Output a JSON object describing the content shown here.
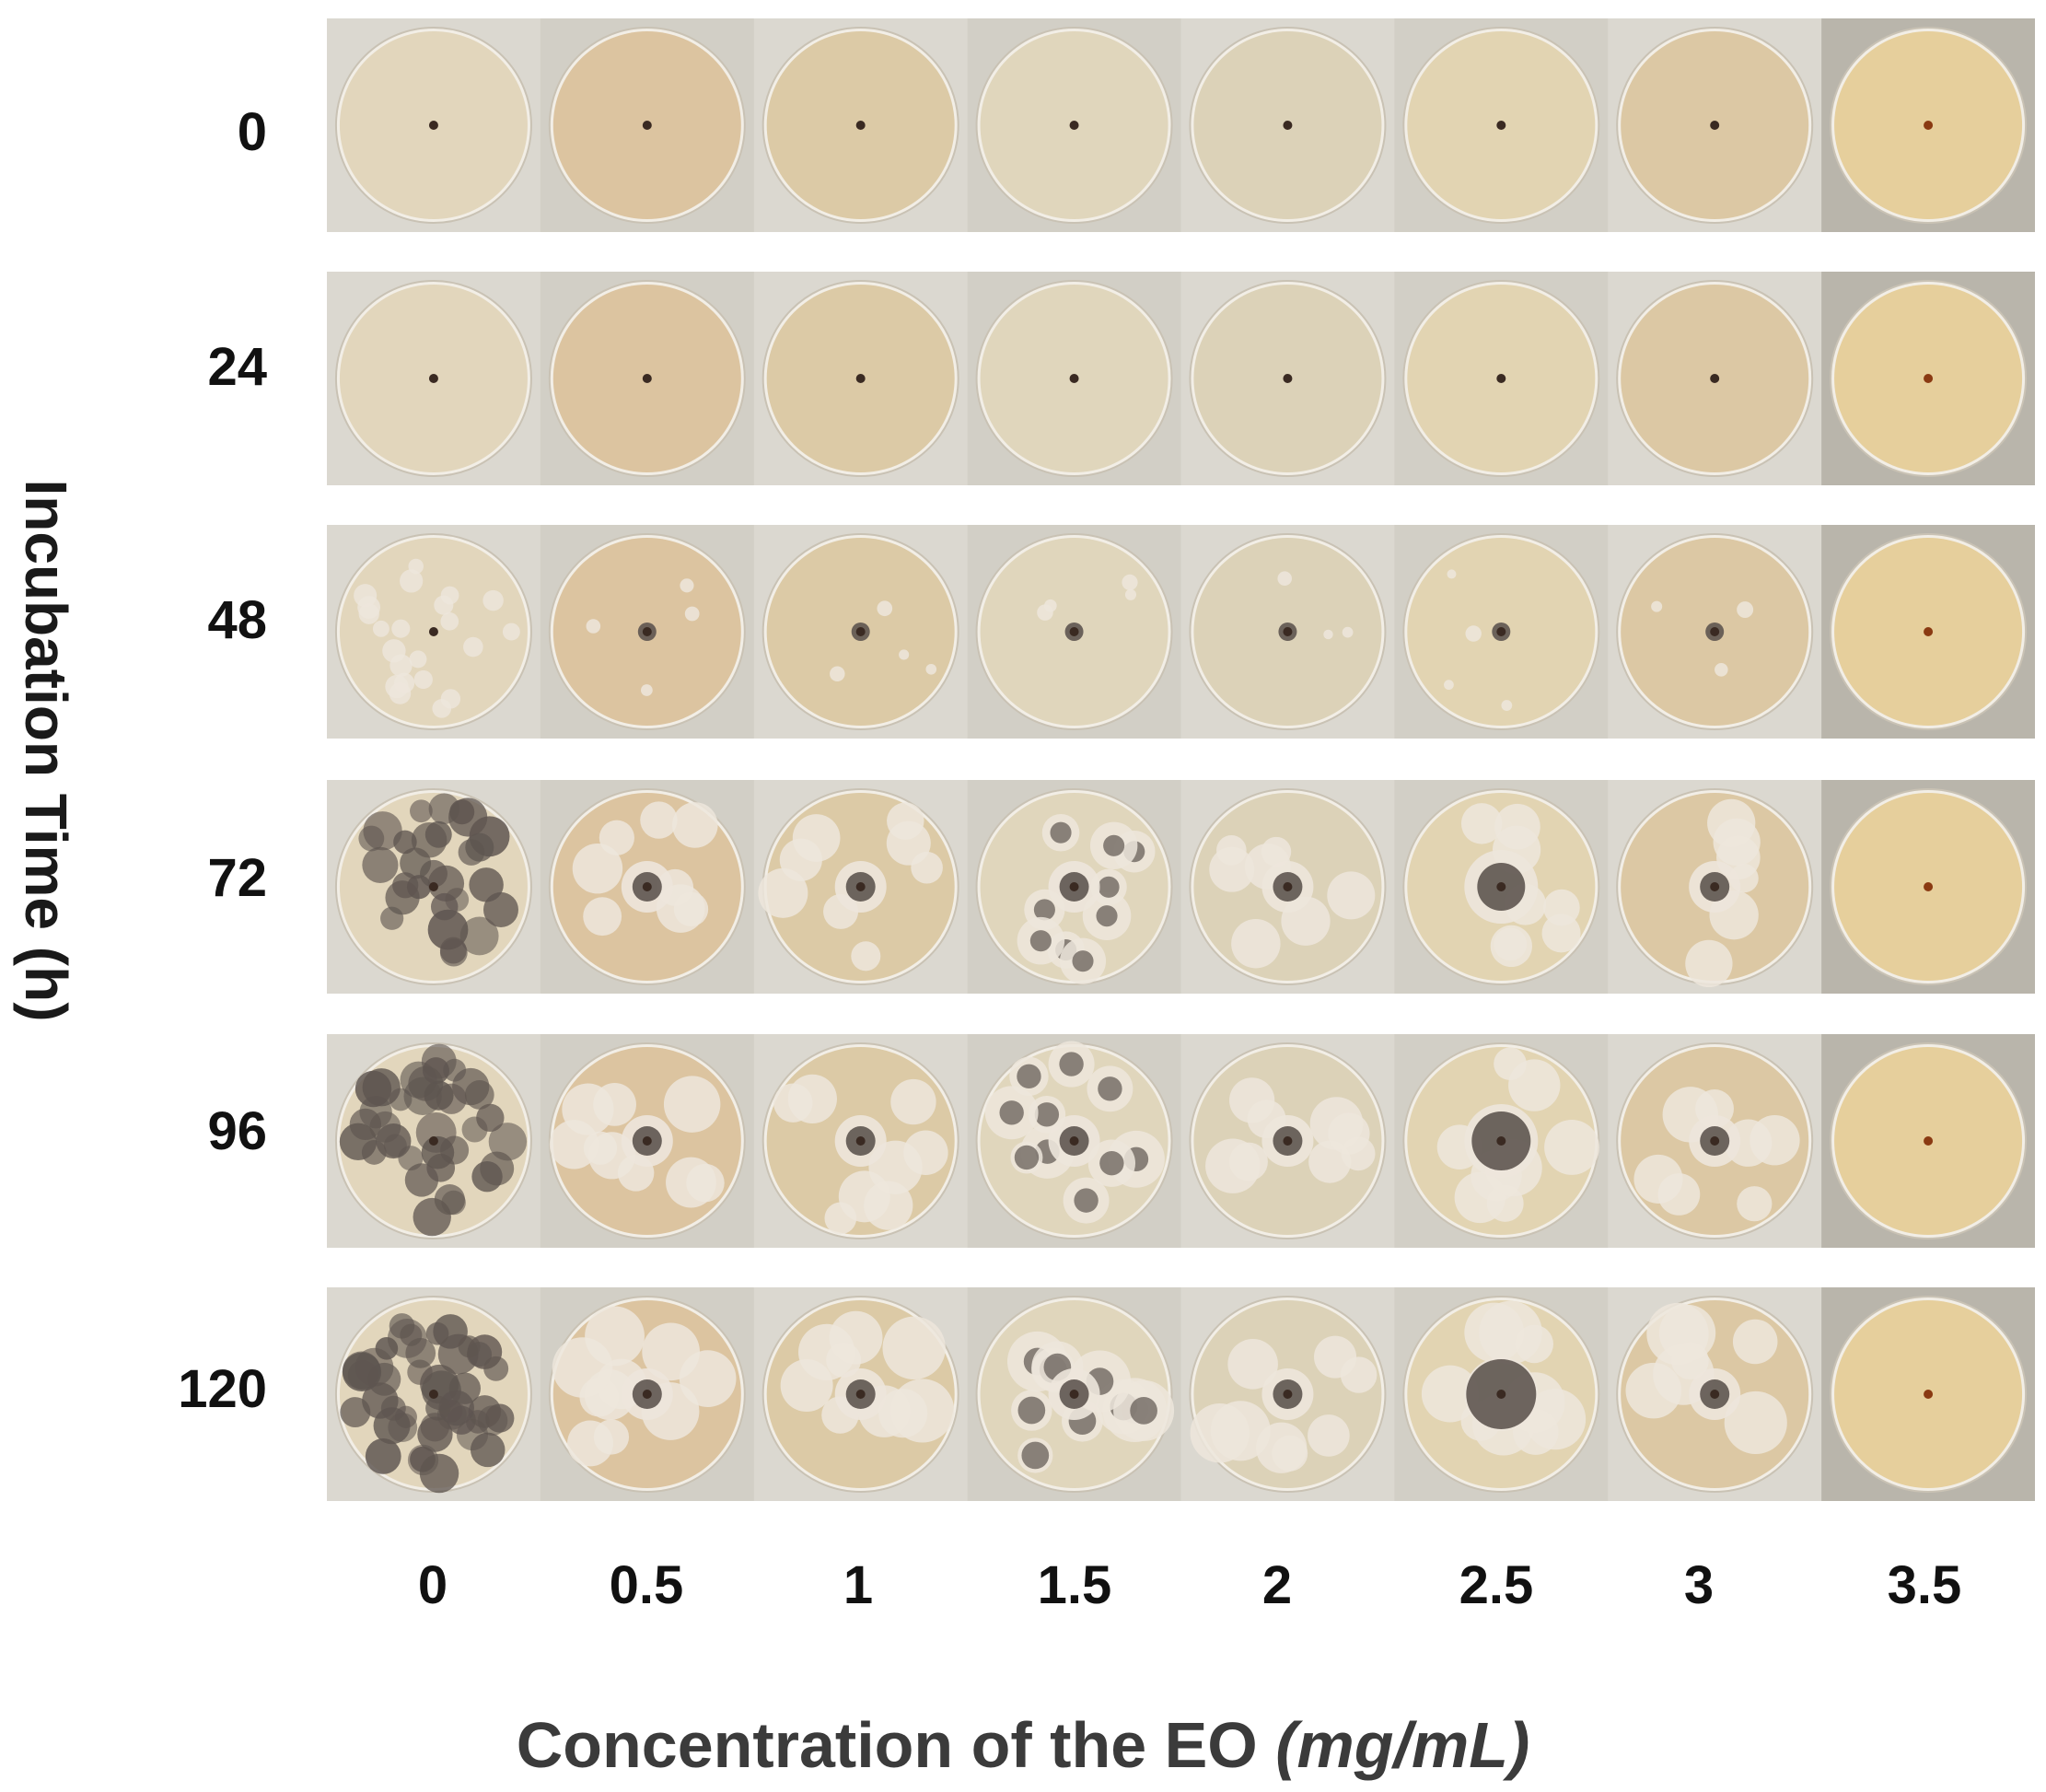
{
  "figure": {
    "y_axis_title": "Incubation Time (h)",
    "x_axis_title_main": "Concentration of the EO",
    "x_axis_title_unit": "(mg/mL)",
    "incubation_times": [
      "0",
      "24",
      "48",
      "72",
      "96",
      "120"
    ],
    "concentrations": [
      "0",
      "0.5",
      "1",
      "1.5",
      "2",
      "2.5",
      "3",
      "3.5"
    ]
  },
  "colors": {
    "agar_light": "#e6dcc4",
    "agar_warm": "#dcc49c",
    "colony_white": "#ede6dc",
    "colony_dark": "#5e5550",
    "inoculum": "#3a2a22",
    "inoculum_orange": "#8a3a12",
    "background_strip": "#d8d5cd",
    "background_dark_cell": "#b9b5ab"
  }
}
